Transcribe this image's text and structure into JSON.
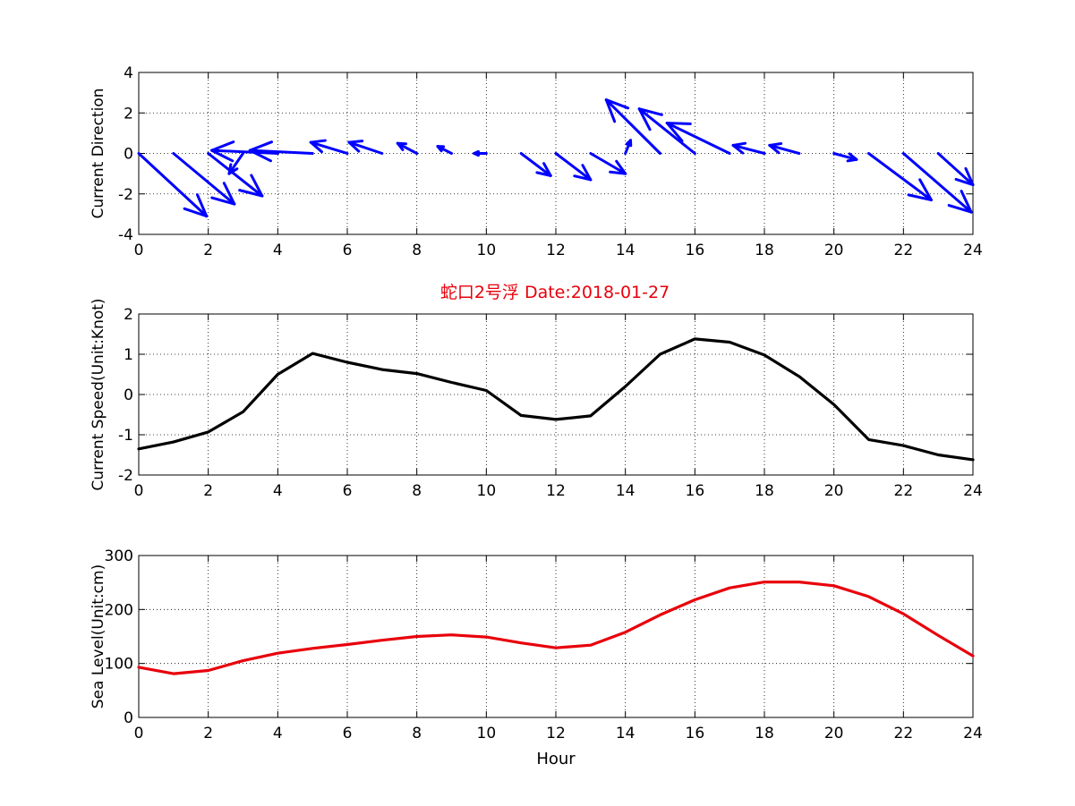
{
  "figure": {
    "title": "蛇口2号浮   Date:2018-01-27",
    "title_color": "#e8000b",
    "background": "#ffffff"
  },
  "chart_data": [
    {
      "type": "quiver",
      "ylabel": "Current Direction",
      "xlabel": "",
      "xlim": [
        0,
        24
      ],
      "ylim": [
        -4,
        4
      ],
      "xticks": [
        0,
        2,
        4,
        6,
        8,
        10,
        12,
        14,
        16,
        18,
        20,
        22,
        24
      ],
      "yticks": [
        -4,
        -2,
        0,
        2,
        4
      ],
      "grid": true,
      "color": "#0000ff",
      "x": [
        0,
        1,
        2,
        3,
        4,
        5,
        6,
        7,
        8,
        9,
        10,
        11,
        12,
        13,
        14,
        15,
        16,
        17,
        18,
        19,
        20,
        21,
        22,
        23,
        24
      ],
      "u": [
        1.95,
        1.75,
        1.55,
        -0.4,
        -1.9,
        -1.8,
        -1.05,
        -0.95,
        -0.55,
        -0.4,
        -0.35,
        0.85,
        1.0,
        1.0,
        0.15,
        -1.55,
        -1.6,
        -1.8,
        -0.9,
        -0.85,
        0.65,
        1.8,
        1.95,
        1.0,
        0
      ],
      "v": [
        -3.1,
        -2.5,
        -2.1,
        -1.0,
        0.15,
        0.15,
        0.55,
        0.55,
        0.5,
        0.35,
        0.0,
        -1.1,
        -1.3,
        -1.0,
        0.65,
        2.65,
        2.2,
        1.5,
        0.4,
        0.4,
        -0.3,
        -2.3,
        -2.9,
        -1.55,
        0
      ]
    },
    {
      "type": "line",
      "ylabel": "Current Speed(Unit:Knot)",
      "xlabel": "",
      "xlim": [
        0,
        24
      ],
      "ylim": [
        -2,
        2
      ],
      "xticks": [
        0,
        2,
        4,
        6,
        8,
        10,
        12,
        14,
        16,
        18,
        20,
        22,
        24
      ],
      "yticks": [
        -2,
        -1,
        0,
        1,
        2
      ],
      "grid": true,
      "series": [
        {
          "color": "#000000",
          "x": [
            0,
            1,
            2,
            3,
            4,
            5,
            6,
            7,
            8,
            9,
            10,
            11,
            12,
            13,
            14,
            15,
            16,
            17,
            18,
            19,
            20,
            21,
            22,
            23,
            24
          ],
          "y": [
            -1.35,
            -1.18,
            -0.93,
            -0.43,
            0.5,
            1.02,
            0.8,
            0.62,
            0.52,
            0.3,
            0.1,
            -0.52,
            -0.62,
            -0.53,
            0.2,
            1.0,
            1.38,
            1.3,
            0.98,
            0.45,
            -0.25,
            -1.12,
            -1.27,
            -1.5,
            -1.62
          ]
        }
      ]
    },
    {
      "type": "line",
      "ylabel": "Sea Level(Unit:cm)",
      "xlabel": "Hour",
      "xlim": [
        0,
        24
      ],
      "ylim": [
        0,
        300
      ],
      "xticks": [
        0,
        2,
        4,
        6,
        8,
        10,
        12,
        14,
        16,
        18,
        20,
        22,
        24
      ],
      "yticks": [
        0,
        100,
        200,
        300
      ],
      "grid": true,
      "series": [
        {
          "color": "#e8000b",
          "x": [
            0,
            1,
            2,
            3,
            4,
            5,
            6,
            7,
            8,
            9,
            10,
            11,
            12,
            13,
            14,
            15,
            16,
            17,
            18,
            19,
            20,
            21,
            22,
            23,
            24
          ],
          "y": [
            93,
            81,
            87,
            105,
            119,
            128,
            135,
            143,
            150,
            153,
            149,
            138,
            129,
            134,
            158,
            190,
            218,
            240,
            251,
            251,
            244,
            224,
            192,
            152,
            114
          ]
        }
      ]
    }
  ]
}
